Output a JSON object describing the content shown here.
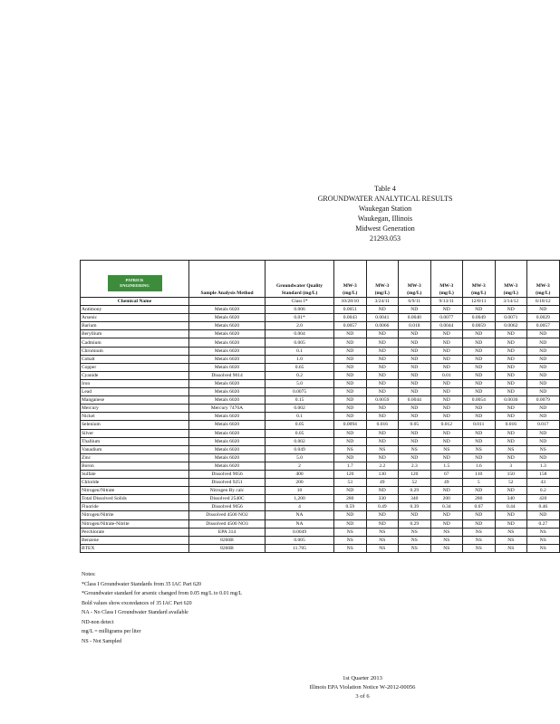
{
  "header": {
    "table_no": "Table 4",
    "title": "GROUNDWATER ANALYTICAL RESULTS",
    "site": "Waukegan Station",
    "location": "Waukegan, Illinois",
    "client": "Midwest Generation",
    "project": "21293.053"
  },
  "logo": {
    "line1": "PATRICK",
    "line2": "ENGINEERING"
  },
  "table": {
    "method_header": "Sample Analysis Method",
    "standard_header": "Groundwater Quality Standard (mg/L)",
    "standard_class": "Class I*",
    "chemical_header": "Chemical Name",
    "wells": [
      "MW-3",
      "MW-3",
      "MW-3",
      "MW-3",
      "MW-3",
      "MW-3",
      "MW-3"
    ],
    "units": [
      "(mg/L)",
      "(mg/L)",
      "(mg/L)",
      "(mg/L)",
      "(mg/L)",
      "(mg/L)",
      "(mg/L)"
    ],
    "dates": [
      "10/28/10",
      "3/24/11",
      "6/9/11",
      "9/13/11",
      "12/8/11",
      "3/14/12",
      "6/18/12"
    ],
    "rows": [
      {
        "chemical": "Antimony",
        "method": "Metals 6020",
        "standard": "0.006",
        "values": [
          "0.0051",
          "ND",
          "ND",
          "ND",
          "ND",
          "ND",
          "ND"
        ]
      },
      {
        "chemical": "Arsenic",
        "method": "Metals 6020",
        "standard": "0.01*",
        "values": [
          "0.0043",
          "0.0041",
          "0.0040",
          "0.0077",
          "0.0049",
          "0.0071",
          "0.0029"
        ]
      },
      {
        "chemical": "Barium",
        "method": "Metals 6020",
        "standard": "2.0",
        "values": [
          "0.0057",
          "0.0066",
          "0.018",
          "0.0044",
          "0.0059",
          "0.0062",
          "0.0057"
        ]
      },
      {
        "chemical": "Beryllium",
        "method": "Metals 6020",
        "standard": "0.004",
        "values": [
          "ND",
          "ND",
          "ND",
          "ND",
          "ND",
          "ND",
          "ND"
        ]
      },
      {
        "chemical": "Cadmium",
        "method": "Metals 6020",
        "standard": "0.005",
        "values": [
          "ND",
          "ND",
          "ND",
          "ND",
          "ND",
          "ND",
          "ND"
        ]
      },
      {
        "chemical": "Chromium",
        "method": "Metals 6020",
        "standard": "0.1",
        "values": [
          "ND",
          "ND",
          "ND",
          "ND",
          "ND",
          "ND",
          "ND"
        ]
      },
      {
        "chemical": "Cobalt",
        "method": "Metals 6020",
        "standard": "1.0",
        "values": [
          "ND",
          "ND",
          "ND",
          "ND",
          "ND",
          "ND",
          "ND"
        ]
      },
      {
        "chemical": "Copper",
        "method": "Metals 6020",
        "standard": "0.65",
        "values": [
          "ND",
          "ND",
          "ND",
          "ND",
          "ND",
          "ND",
          "ND"
        ]
      },
      {
        "chemical": "Cyanide",
        "method": "Dissolved 9014",
        "standard": "0.2",
        "values": [
          "ND",
          "ND",
          "ND",
          "0.01",
          "ND",
          "ND",
          "ND"
        ]
      },
      {
        "chemical": "Iron",
        "method": "Metals 6020",
        "standard": "5.0",
        "values": [
          "ND",
          "ND",
          "ND",
          "ND",
          "ND",
          "ND",
          "ND"
        ]
      },
      {
        "chemical": "Lead",
        "method": "Metals 6020",
        "standard": "0.0075",
        "values": [
          "ND",
          "ND",
          "ND",
          "ND",
          "ND",
          "ND",
          "ND"
        ]
      },
      {
        "chemical": "Manganese",
        "method": "Metals 6020",
        "standard": "0.15",
        "values": [
          "ND",
          "0.0059",
          "0.0044",
          "ND",
          "0.0054",
          "0.0036",
          "0.0079"
        ]
      },
      {
        "chemical": "Mercury",
        "method": "Mercury 7470A",
        "standard": "0.002",
        "values": [
          "ND",
          "ND",
          "ND",
          "ND",
          "ND",
          "ND",
          "ND"
        ]
      },
      {
        "chemical": "Nickel",
        "method": "Metals 6020",
        "standard": "0.1",
        "values": [
          "ND",
          "ND",
          "ND",
          "ND",
          "ND",
          "ND",
          "ND"
        ]
      },
      {
        "chemical": "Selenium",
        "method": "Metals 6020",
        "standard": "0.05",
        "values": [
          "0.0094",
          "0.016",
          "0.05",
          "0.012",
          "0.011",
          "0.016",
          "0.017"
        ]
      },
      {
        "chemical": "Silver",
        "method": "Metals 6020",
        "standard": "0.05",
        "values": [
          "ND",
          "ND",
          "ND",
          "ND",
          "ND",
          "ND",
          "ND"
        ]
      },
      {
        "chemical": "Thallium",
        "method": "Metals 6020",
        "standard": "0.002",
        "values": [
          "ND",
          "ND",
          "ND",
          "ND",
          "ND",
          "ND",
          "ND"
        ]
      },
      {
        "chemical": "Vanadium",
        "method": "Metals 6020",
        "standard": "0.049",
        "values": [
          "NS",
          "NS",
          "NS",
          "NS",
          "NS",
          "NS",
          "NS"
        ]
      },
      {
        "chemical": "Zinc",
        "method": "Metals 6020",
        "standard": "5.0",
        "values": [
          "ND",
          "ND",
          "ND",
          "ND",
          "ND",
          "ND",
          "ND"
        ]
      },
      {
        "chemical": "Boron",
        "method": "Metals 6020",
        "standard": "2",
        "values": [
          "1.7",
          "2.2",
          "2.3",
          "1.5",
          "1.6",
          "3",
          "1.3"
        ]
      },
      {
        "chemical": "Sulfate",
        "method": "Dissolved 9056",
        "standard": "400",
        "values": [
          "120",
          "130",
          "120",
          "67",
          "110",
          "150",
          "158"
        ]
      },
      {
        "chemical": "Chloride",
        "method": "Dissolved 9251",
        "standard": "200",
        "values": [
          "53",
          "49",
          "52",
          "49",
          "5",
          "52",
          "43"
        ]
      },
      {
        "chemical": "Nitrogen/Nitrate",
        "method": "Nitrogen By calc",
        "standard": "10",
        "values": [
          "ND",
          "ND",
          "0.29",
          "ND",
          "ND",
          "ND",
          "0.2"
        ]
      },
      {
        "chemical": "Total Dissolved Solids",
        "method": "Dissolved 2540C",
        "standard": "1,200",
        "values": [
          "280",
          "330",
          "340",
          "200",
          "280",
          "340",
          "420"
        ]
      },
      {
        "chemical": "Fluoride",
        "method": "Dissolved 9056",
        "standard": "4",
        "values": [
          "0.59",
          "0.49",
          "0.39",
          "0.34",
          "0.67",
          "0.44",
          "0.46"
        ]
      },
      {
        "chemical": "Nitrogen/Nitrite",
        "method": "Dissolved 4500 NO2",
        "standard": "NA",
        "values": [
          "ND",
          "ND",
          "ND",
          "ND",
          "ND",
          "ND",
          "ND"
        ]
      },
      {
        "chemical": "Nitrogen/Nitrate-Nitrite",
        "method": "Dissolved 4500 NO3",
        "standard": "NA",
        "values": [
          "ND",
          "ND",
          "0.29",
          "ND",
          "ND",
          "ND",
          "0.27"
        ]
      },
      {
        "chemical": "Perchlorate",
        "method": "EPA 314",
        "standard": "0.0049",
        "values": [
          "NS",
          "NS",
          "NS",
          "NS",
          "NS",
          "NS",
          "NS"
        ]
      },
      {
        "chemical": "Benzene",
        "method": "8260B",
        "standard": "0.005",
        "values": [
          "NS",
          "NS",
          "NS",
          "NS",
          "NS",
          "NS",
          "NS"
        ]
      },
      {
        "chemical": "BTEX",
        "method": "8260B",
        "standard": "11.705",
        "values": [
          "NS",
          "NS",
          "NS",
          "NS",
          "NS",
          "NS",
          "NS"
        ]
      }
    ]
  },
  "notes": [
    "Notes:",
    "*Class I Groundwater Standards from 35 IAC Part 620",
    "*Groundwater standard for arsenic changed from 0.05 mg/L to 0.01 mg/L",
    "Bold values show exceedances of 35 IAC Part 620",
    "NA - No Class I Groundwater Standard available",
    "ND-non detect",
    "mg/L = milligrams per liter",
    "NS - Not Sampled"
  ],
  "footer": {
    "quarter": "1st Quarter 2013",
    "notice": "Illinois EPA Violation Notice W-2012-00056",
    "page": "3 of 6"
  }
}
